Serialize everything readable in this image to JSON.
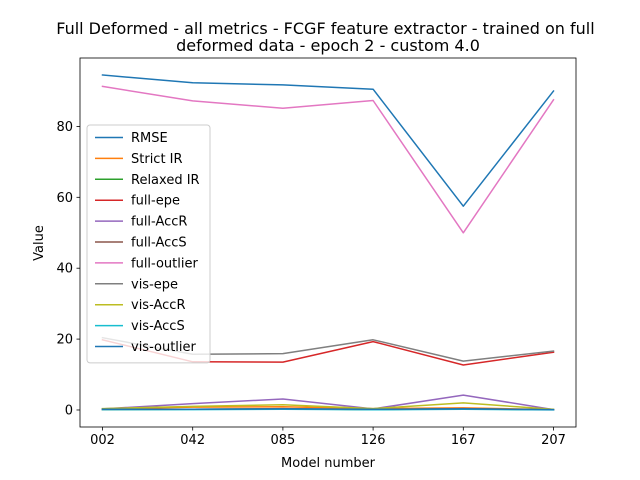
{
  "chart_data": {
    "type": "line",
    "title": "Full Deformed - all metrics - FCGF feature extractor -  trained on full\ndeformed data -  epoch 2 - custom 4.0",
    "xlabel": "Model number",
    "ylabel": "Value",
    "categories": [
      "002",
      "042",
      "085",
      "126",
      "167",
      "207"
    ],
    "ylim": [
      -4.8,
      99.3
    ],
    "yticks": [
      0,
      20,
      40,
      60,
      80
    ],
    "grid": false,
    "legend_position": "center-left",
    "series": [
      {
        "name": "RMSE",
        "color": "#1f77b4",
        "values": [
          94.5,
          92.3,
          91.7,
          90.5,
          57.5,
          90.0
        ]
      },
      {
        "name": "Strict IR",
        "color": "#ff7f0e",
        "values": [
          0.3,
          0.8,
          0.9,
          0.4,
          0.6,
          0.1
        ]
      },
      {
        "name": "Relaxed IR",
        "color": "#2ca02c",
        "values": [
          0.1,
          0.2,
          0.3,
          0.1,
          0.3,
          0.05
        ]
      },
      {
        "name": "full-epe",
        "color": "#d62728",
        "values": [
          19.8,
          13.6,
          13.5,
          19.3,
          12.7,
          16.3
        ]
      },
      {
        "name": "full-AccR",
        "color": "#9467bd",
        "values": [
          0.3,
          1.8,
          3.1,
          0.3,
          4.2,
          0.1
        ]
      },
      {
        "name": "full-AccS",
        "color": "#8c564b",
        "values": [
          0.1,
          0.2,
          0.4,
          0.1,
          0.4,
          0.05
        ]
      },
      {
        "name": "full-outlier",
        "color": "#e377c2",
        "values": [
          91.3,
          87.2,
          85.1,
          87.3,
          50.0,
          87.5
        ]
      },
      {
        "name": "vis-epe",
        "color": "#7f7f7f",
        "values": [
          20.4,
          15.7,
          15.9,
          19.8,
          13.8,
          16.6
        ]
      },
      {
        "name": "vis-AccR",
        "color": "#bcbd22",
        "values": [
          0.4,
          1.0,
          1.5,
          0.4,
          2.0,
          0.2
        ]
      },
      {
        "name": "vis-AccS",
        "color": "#17becf",
        "values": [
          0.1,
          0.1,
          0.2,
          0.05,
          0.2,
          0.02
        ]
      },
      {
        "name": "vis-outlier",
        "color": "#1f77b4",
        "values": [
          0.2,
          0.2,
          0.3,
          0.2,
          0.3,
          0.1
        ]
      }
    ]
  }
}
